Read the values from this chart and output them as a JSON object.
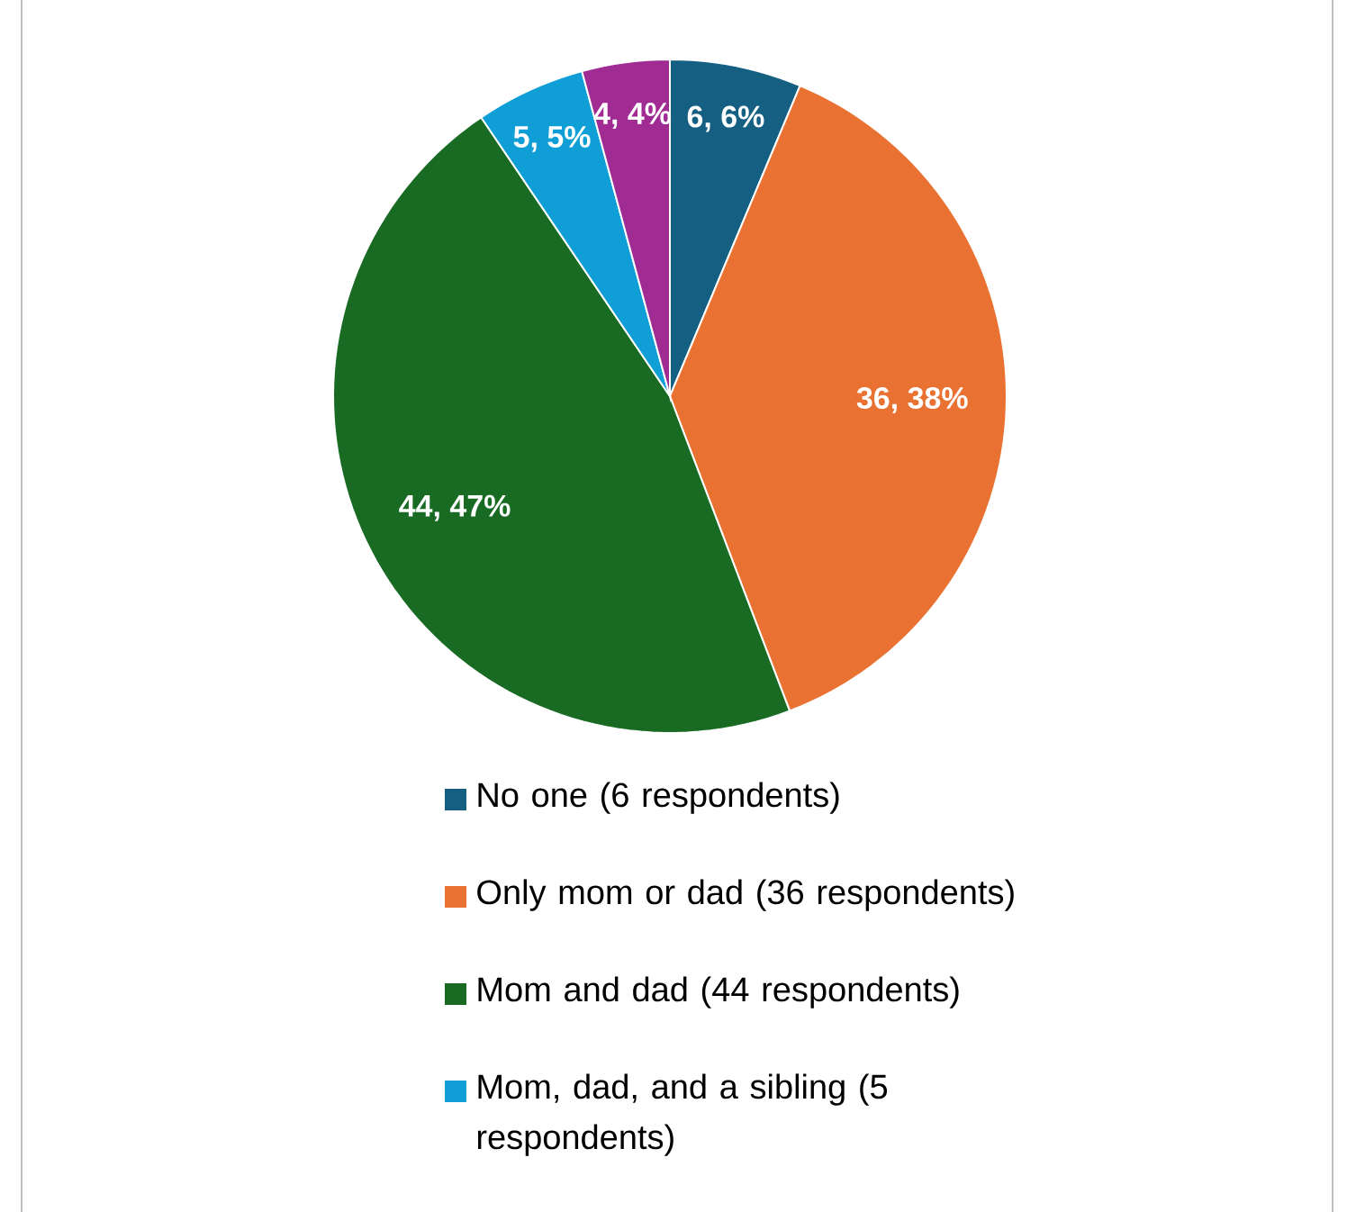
{
  "chart_data": {
    "type": "pie",
    "categories": [
      "No one (6 respondents)",
      "Only mom or dad (36 respondents)",
      "Mom and dad (44 respondents)",
      "Mom, dad, and a sibling (5 respondents)",
      null
    ],
    "values": [
      6,
      36,
      44,
      5,
      4
    ],
    "colors": [
      "#156082",
      "#e97132",
      "#196b24",
      "#0f9ed5",
      "#a02b93"
    ],
    "value_labels": [
      "6, 6%",
      "36, 38%",
      "44, 47%",
      "5, 5%",
      "4, 4%"
    ],
    "legend": "bottom"
  }
}
